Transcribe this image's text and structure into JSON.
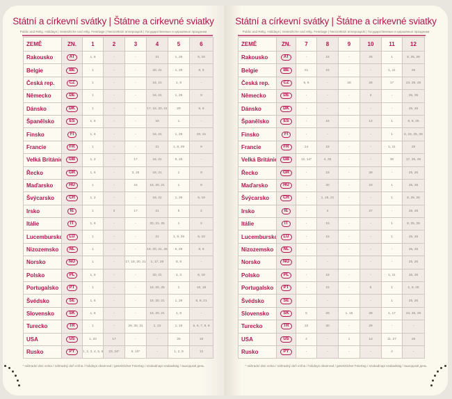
{
  "title": "Státní a církevní svátky | Štátne a cirkevné sviatky",
  "subtitle": "Public and Relig. Holidays | Gesetzliche und relig. Feiertage | Nemzetközi ünnepnapok | Государственные и церковные праздники",
  "footnote": "* náhradní den volna / náhradný deň voľna / holidays observed / gesetzlicher Feiertag / szabadnapi szabadság / выходной день",
  "colors": {
    "accent": "#b0164f",
    "paper": "#fbf8ee",
    "shade": "#f0e9e4"
  },
  "headers": {
    "country": "ZEMĚ",
    "code": "ZN."
  },
  "countries": [
    {
      "name": "Rakousko",
      "code": "AT"
    },
    {
      "name": "Belgie",
      "code": "BE"
    },
    {
      "name": "Česká rep.",
      "code": "CZ"
    },
    {
      "name": "Německo",
      "code": "DE"
    },
    {
      "name": "Dánsko",
      "code": "DK"
    },
    {
      "name": "Španělsko",
      "code": "ES"
    },
    {
      "name": "Finsko",
      "code": "FI"
    },
    {
      "name": "Francie",
      "code": "FR"
    },
    {
      "name": "Velká Británie",
      "code": "GB"
    },
    {
      "name": "Řecko",
      "code": "GR"
    },
    {
      "name": "Maďarsko",
      "code": "HU"
    },
    {
      "name": "Švýcarsko",
      "code": "CH"
    },
    {
      "name": "Irsko",
      "code": "IE"
    },
    {
      "name": "Itálie",
      "code": "IT"
    },
    {
      "name": "Lucembursko",
      "code": "LU"
    },
    {
      "name": "Nizozemsko",
      "code": "NL"
    },
    {
      "name": "Norsko",
      "code": "NO"
    },
    {
      "name": "Polsko",
      "code": "PL"
    },
    {
      "name": "Portugalsko",
      "code": "PT"
    },
    {
      "name": "Švédsko",
      "code": "SE"
    },
    {
      "name": "Slovensko",
      "code": "SK"
    },
    {
      "name": "Turecko",
      "code": "TR"
    },
    {
      "name": "USA",
      "code": "US"
    },
    {
      "name": "Rusko",
      "code": "PY"
    }
  ],
  "left": {
    "months": [
      "1",
      "2",
      "3",
      "4",
      "5",
      "6"
    ],
    "rows": [
      [
        "1, 6",
        "-",
        "-",
        "21",
        "1, 29",
        "9, 19"
      ],
      [
        "1",
        "-",
        "-",
        "20, 21",
        "1, 29",
        "8, 9"
      ],
      [
        "1",
        "-",
        "-",
        "18, 21",
        "1, 8",
        "-"
      ],
      [
        "1",
        "-",
        "-",
        "18, 21",
        "1, 29",
        "9"
      ],
      [
        "1",
        "-",
        "-",
        "17, 18, 20, 21",
        "29",
        "8, 9"
      ],
      [
        "1, 6",
        "-",
        "-",
        "18",
        "1",
        "-"
      ],
      [
        "1, 6",
        "-",
        "-",
        "18, 21",
        "1, 29",
        "20, 21"
      ],
      [
        "1",
        "-",
        "-",
        "21",
        "1, 8, 29",
        "9"
      ],
      [
        "1, 2",
        "-",
        "17",
        "18, 21",
        "5, 26",
        "-"
      ],
      [
        "1, 6",
        "-",
        "3, 25",
        "18, 21",
        "1",
        "9"
      ],
      [
        "1",
        "-",
        "15",
        "18, 20, 21",
        "1",
        "9"
      ],
      [
        "1, 2",
        "-",
        "-",
        "18, 21",
        "1, 29",
        "9, 19"
      ],
      [
        "1",
        "3",
        "17",
        "21",
        "5",
        "2"
      ],
      [
        "1, 6",
        "-",
        "-",
        "20, 21, 25",
        "1",
        "2"
      ],
      [
        "1",
        "-",
        "-",
        "21",
        "1, 9, 29",
        "9, 23"
      ],
      [
        "1",
        "-",
        "-",
        "18, 20, 21, 26",
        "5, 29",
        "8, 9"
      ],
      [
        "1",
        "-",
        "17, 18, 20, 21",
        "1, 17, 29",
        "8, 9",
        "-"
      ],
      [
        "1, 6",
        "-",
        "-",
        "20, 21",
        "1, 3",
        "8, 19"
      ],
      [
        "1",
        "-",
        "-",
        "18, 20, 25",
        "1",
        "10, 19"
      ],
      [
        "1, 6",
        "-",
        "-",
        "18, 20, 21",
        "1, 29",
        "6, 8, 21"
      ],
      [
        "1, 6",
        "-",
        "-",
        "18, 20, 21",
        "1, 8",
        "-"
      ],
      [
        "1",
        "-",
        "29, 30, 31",
        "1, 23",
        "1, 19",
        "5, 6, 7, 8, 9"
      ],
      [
        "1, 20",
        "17",
        "-",
        "-",
        "26",
        "19"
      ],
      [
        "1, 2, 3, 4, 5, 6, 7, 8",
        "23, 24*",
        "8, 10*",
        "-",
        "1, 2, 9",
        "12"
      ]
    ]
  },
  "right": {
    "months": [
      "7",
      "8",
      "9",
      "10",
      "11",
      "12"
    ],
    "rows": [
      [
        "-",
        "15",
        "-",
        "26",
        "1",
        "8, 25, 26"
      ],
      [
        "21",
        "15",
        "-",
        "-",
        "1, 11",
        "25"
      ],
      [
        "5, 6",
        "-",
        "28",
        "28",
        "17",
        "24, 25, 26"
      ],
      [
        "-",
        "-",
        "-",
        "3",
        "-",
        "25, 26"
      ],
      [
        "-",
        "-",
        "-",
        "-",
        "-",
        "25, 26"
      ],
      [
        "-",
        "15",
        "-",
        "12",
        "1",
        "6, 8, 25"
      ],
      [
        "-",
        "-",
        "-",
        "-",
        "1",
        "6, 24, 25, 26"
      ],
      [
        "14",
        "15",
        "-",
        "-",
        "1, 11",
        "25"
      ],
      [
        "12, 14*",
        "4, 25",
        "-",
        "-",
        "30",
        "17, 25, 26"
      ],
      [
        "-",
        "15",
        "-",
        "28",
        "-",
        "25, 26"
      ],
      [
        "-",
        "20",
        "-",
        "23",
        "1",
        "25, 26"
      ],
      [
        "-",
        "1, 15, 21",
        "-",
        "-",
        "1",
        "8, 25, 26"
      ],
      [
        "-",
        "4",
        "-",
        "27",
        "-",
        "25, 26"
      ],
      [
        "-",
        "15",
        "-",
        "-",
        "1",
        "8, 25, 26"
      ],
      [
        "-",
        "15",
        "-",
        "-",
        "1",
        "25, 26"
      ],
      [
        "-",
        "-",
        "-",
        "-",
        "-",
        "25, 26"
      ],
      [
        "-",
        "-",
        "-",
        "-",
        "-",
        "25, 26"
      ],
      [
        "-",
        "15",
        "-",
        "-",
        "1, 11",
        "25, 26"
      ],
      [
        "-",
        "15",
        "-",
        "5",
        "1",
        "1, 8, 25"
      ],
      [
        "-",
        "-",
        "-",
        "-",
        "1",
        "25, 26"
      ],
      [
        "5",
        "29",
        "1, 15",
        "28",
        "1, 17",
        "24, 25, 26"
      ],
      [
        "15",
        "30",
        "-",
        "29",
        "-",
        "-"
      ],
      [
        "4",
        "-",
        "1",
        "13",
        "11, 27",
        "25"
      ],
      [
        "-",
        "-",
        "-",
        "-",
        "4",
        "-"
      ]
    ]
  }
}
